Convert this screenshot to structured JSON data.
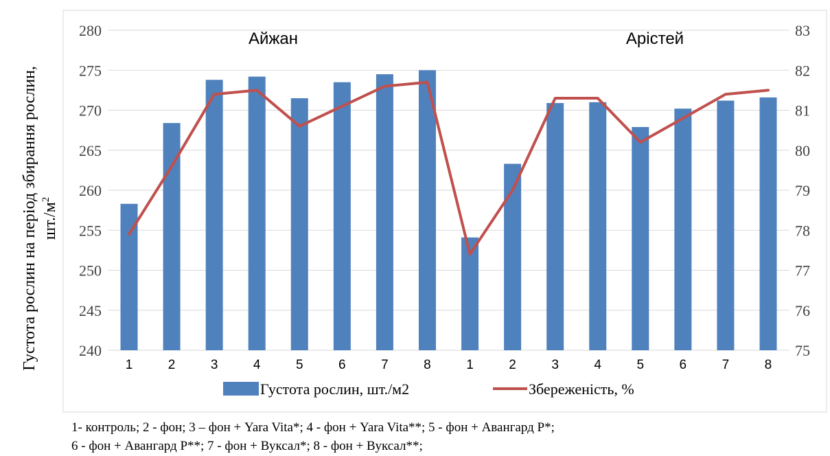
{
  "chart_data": {
    "type": "bar+line",
    "categories": [
      "1",
      "2",
      "3",
      "4",
      "5",
      "6",
      "7",
      "8",
      "1",
      "2",
      "3",
      "4",
      "5",
      "6",
      "7",
      "8"
    ],
    "groups": [
      "Айжан",
      "Арістей"
    ],
    "series": [
      {
        "name": "Густота рослин, шт./м2",
        "type": "bar",
        "axis": "left",
        "color": "#4f81bd",
        "values": [
          258.3,
          268.4,
          273.8,
          274.2,
          271.5,
          273.5,
          274.5,
          275.0,
          254.1,
          263.3,
          270.9,
          271.0,
          267.9,
          270.2,
          271.2,
          271.6
        ]
      },
      {
        "name": "Збереженість, %",
        "type": "line",
        "axis": "right",
        "color": "#c0504d",
        "values": [
          77.9,
          79.6,
          81.4,
          81.5,
          80.6,
          81.1,
          81.6,
          81.7,
          77.4,
          79.0,
          81.3,
          81.3,
          80.2,
          80.8,
          81.4,
          81.5
        ]
      }
    ],
    "ylabel": "Густота рослин на період збирання рослин,",
    "ylabel_line2": "шт./м",
    "ylabel_sup": "2",
    "ylim_left": [
      240,
      280
    ],
    "yticks_left": [
      "240",
      "245",
      "250",
      "255",
      "260",
      "265",
      "270",
      "275",
      "280"
    ],
    "ylim_right": [
      75,
      83
    ],
    "yticks_right": [
      "75",
      "76",
      "77",
      "78",
      "79",
      "80",
      "81",
      "82",
      "83"
    ],
    "grid": true,
    "legend_position": "bottom"
  },
  "footnote": {
    "line1": "1-     контроль; 2 - фон; 3 – фон + Yara Vita*; 4 - фон + Yara Vita**; 5 - фон + Авангард Р*;",
    "line2": "6 - фон + Авангард Р**; 7 - фон + Вуксал*; 8 - фон + Вуксал**;"
  }
}
